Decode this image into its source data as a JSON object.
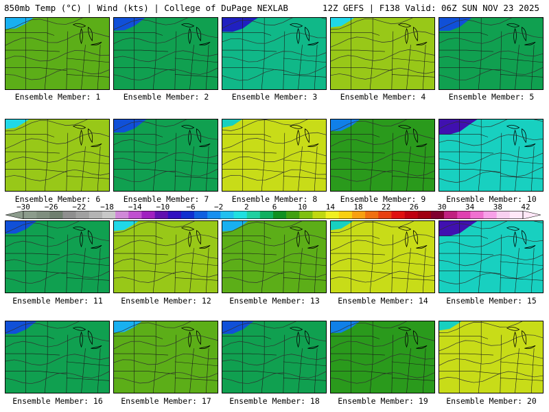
{
  "header": {
    "left_title": "850mb Temp (°C) | Wind (kts) | College of DuPage NEXLAB",
    "right_title": "12Z GEFS | F138 Valid: 06Z SUN NOV 23 2025"
  },
  "colorbar": {
    "labels": [
      "−30",
      "−26",
      "−22",
      "−18",
      "−14",
      "−10",
      "−6",
      "−2",
      "2",
      "6",
      "10",
      "14",
      "18",
      "22",
      "26",
      "30",
      "34",
      "38",
      "42"
    ],
    "colors": [
      "#8c9c8c",
      "#7f8f7f",
      "#6f7f6f",
      "#8f8f8f",
      "#a0a0a0",
      "#b4b4b4",
      "#c8c8c8",
      "#d088d8",
      "#c050d0",
      "#a020c0",
      "#6010b0",
      "#3010c0",
      "#1030d0",
      "#1060e0",
      "#1890f0",
      "#20c0f0",
      "#20e0e0",
      "#20d0a0",
      "#10b060",
      "#109020",
      "#40a010",
      "#80c010",
      "#c0d810",
      "#f0f020",
      "#f8d010",
      "#f8a010",
      "#f07010",
      "#e84010",
      "#e01010",
      "#c00010",
      "#a00010",
      "#800030",
      "#c02080",
      "#e040b0",
      "#f070d0",
      "#f8a0e8",
      "#f8d0f0",
      "#ffe8f8"
    ]
  },
  "members": [
    {
      "label": "Ensemble Member: 1",
      "cold": 0.55
    },
    {
      "label": "Ensemble Member: 2",
      "cold": 0.7
    },
    {
      "label": "Ensemble Member: 3",
      "cold": 0.85
    },
    {
      "label": "Ensemble Member: 4",
      "cold": 0.35
    },
    {
      "label": "Ensemble Member: 5",
      "cold": 0.75
    },
    {
      "label": "Ensemble Member: 6",
      "cold": 0.35
    },
    {
      "label": "Ensemble Member: 7",
      "cold": 0.75
    },
    {
      "label": "Ensemble Member: 8",
      "cold": 0.2
    },
    {
      "label": "Ensemble Member: 9",
      "cold": 0.6
    },
    {
      "label": "Ensemble Member: 10",
      "cold": 0.95
    },
    {
      "label": "Ensemble Member: 11",
      "cold": 0.7
    },
    {
      "label": "Ensemble Member: 12",
      "cold": 0.4
    },
    {
      "label": "Ensemble Member: 13",
      "cold": 0.45
    },
    {
      "label": "Ensemble Member: 14",
      "cold": 0.3
    },
    {
      "label": "Ensemble Member: 15",
      "cold": 0.95
    },
    {
      "label": "Ensemble Member: 16",
      "cold": 0.7
    },
    {
      "label": "Ensemble Member: 17",
      "cold": 0.55
    },
    {
      "label": "Ensemble Member: 18",
      "cold": 0.7
    },
    {
      "label": "Ensemble Member: 19",
      "cold": 0.6
    },
    {
      "label": "Ensemble Member: 20",
      "cold": 0.3
    }
  ]
}
